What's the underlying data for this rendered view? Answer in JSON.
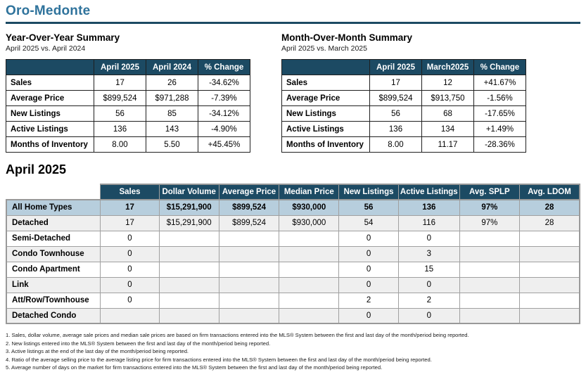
{
  "page": {
    "title": "Oro-Medonte"
  },
  "colors": {
    "title_blue": "#2f739c",
    "header_navy": "#1c4a63",
    "highlight_row_blue": "#b7cedd",
    "stripe_gray": "#efefef",
    "detail_border_gray": "#a0a0a0",
    "summary_border": "#1f1f1f"
  },
  "yoy": {
    "heading": "Year-Over-Year Summary",
    "subtitle": "April 2025 vs. April 2024",
    "columns": [
      "",
      "April 2025",
      "April 2024",
      "% Change"
    ],
    "rows": [
      {
        "label": "Sales",
        "values": [
          "17",
          "26",
          "-34.62%"
        ]
      },
      {
        "label": "Average Price",
        "values": [
          "$899,524",
          "$971,288",
          "-7.39%"
        ]
      },
      {
        "label": "New Listings",
        "values": [
          "56",
          "85",
          "-34.12%"
        ]
      },
      {
        "label": "Active Listings",
        "values": [
          "136",
          "143",
          "-4.90%"
        ]
      },
      {
        "label": "Months of Inventory",
        "values": [
          "8.00",
          "5.50",
          "+45.45%"
        ]
      }
    ]
  },
  "mom": {
    "heading": "Month-Over-Month Summary",
    "subtitle": "April 2025 vs. March 2025",
    "columns": [
      "",
      "April 2025",
      "March2025",
      "% Change"
    ],
    "rows": [
      {
        "label": "Sales",
        "values": [
          "17",
          "12",
          "+41.67%"
        ]
      },
      {
        "label": "Average Price",
        "values": [
          "$899,524",
          "$913,750",
          "-1.56%"
        ]
      },
      {
        "label": "New Listings",
        "values": [
          "56",
          "68",
          "-17.65%"
        ]
      },
      {
        "label": "Active Listings",
        "values": [
          "136",
          "134",
          "+1.49%"
        ]
      },
      {
        "label": "Months of Inventory",
        "values": [
          "8.00",
          "11.17",
          "-28.36%"
        ]
      }
    ]
  },
  "detail": {
    "heading": "April 2025",
    "columns": [
      "",
      "Sales",
      "Dollar Volume",
      "Average Price",
      "Median Price",
      "New Listings",
      "Active Listings",
      "Avg. SPLP",
      "Avg. LDOM"
    ],
    "rows": [
      {
        "label": "All Home Types",
        "highlight": true,
        "values": [
          "17",
          "$15,291,900",
          "$899,524",
          "$930,000",
          "56",
          "136",
          "97%",
          "28"
        ]
      },
      {
        "label": "Detached",
        "highlight": false,
        "values": [
          "17",
          "$15,291,900",
          "$899,524",
          "$930,000",
          "54",
          "116",
          "97%",
          "28"
        ]
      },
      {
        "label": "Semi-Detached",
        "highlight": false,
        "values": [
          "0",
          "",
          "",
          "",
          "0",
          "0",
          "",
          ""
        ]
      },
      {
        "label": "Condo Townhouse",
        "highlight": false,
        "values": [
          "0",
          "",
          "",
          "",
          "0",
          "3",
          "",
          ""
        ]
      },
      {
        "label": "Condo Apartment",
        "highlight": false,
        "values": [
          "0",
          "",
          "",
          "",
          "0",
          "15",
          "",
          ""
        ]
      },
      {
        "label": "Link",
        "highlight": false,
        "values": [
          "0",
          "",
          "",
          "",
          "0",
          "0",
          "",
          ""
        ]
      },
      {
        "label": "Att/Row/Townhouse",
        "highlight": false,
        "values": [
          "0",
          "",
          "",
          "",
          "2",
          "2",
          "",
          ""
        ]
      },
      {
        "label": "Detached Condo",
        "highlight": false,
        "values": [
          "",
          "",
          "",
          "",
          "0",
          "0",
          "",
          ""
        ]
      }
    ]
  },
  "footnotes": [
    "1. Sales, dollar volume, average sale prices and median sale prices are based on firm transactions entered into the MLS® System between the first and last day of the month/period being reported.",
    "2. New listings entered into the MLS® System between the first and last day of the month/period being reported.",
    "3. Active listings at the end of the last day of the month/period being reported.",
    "4. Ratio of the average selling price to the average listing price for firm transactions entered into the MLS® System between the first and last day of the month/period being reported.",
    "5. Average number of days on the market for firm transactions entered into the MLS® System between the first and last day of the month/period being reported."
  ]
}
